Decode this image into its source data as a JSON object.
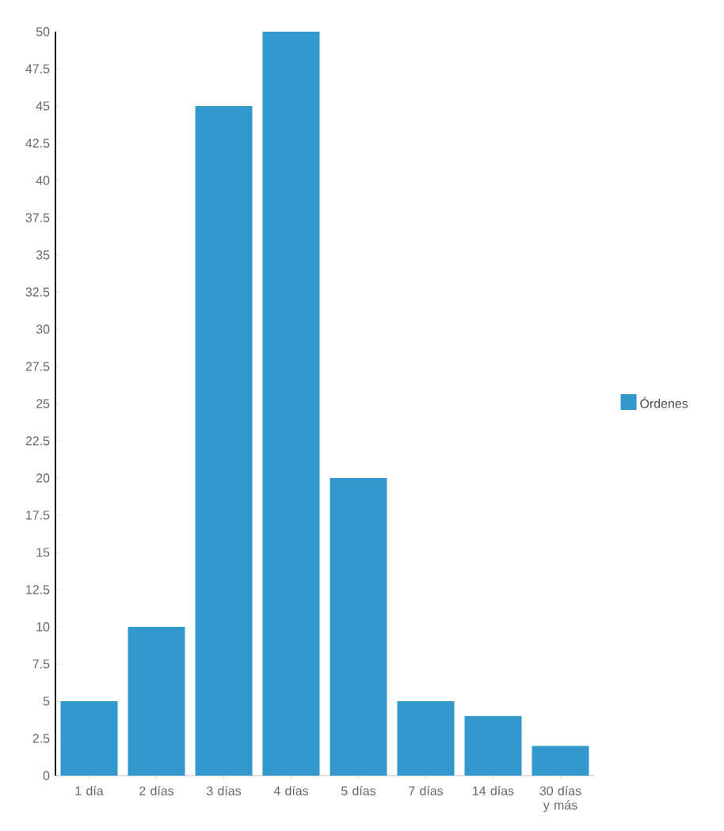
{
  "chart_data": {
    "type": "bar",
    "categories": [
      "1 día",
      "2 días",
      "3 días",
      "4 días",
      "5 días",
      "7 días",
      "14 días",
      "30 días y más"
    ],
    "series": [
      {
        "name": "Órdenes",
        "color": "#3399cc",
        "values": [
          5,
          10,
          45,
          50,
          20,
          5,
          4,
          2
        ]
      }
    ],
    "ylim": [
      0,
      50
    ],
    "yticks": [
      0,
      2.5,
      5,
      7.5,
      10,
      12.5,
      15,
      17.5,
      20,
      22.5,
      25,
      27.5,
      30,
      32.5,
      35,
      37.5,
      40,
      42.5,
      45,
      47.5,
      50
    ],
    "grid": false,
    "legend": "right"
  }
}
